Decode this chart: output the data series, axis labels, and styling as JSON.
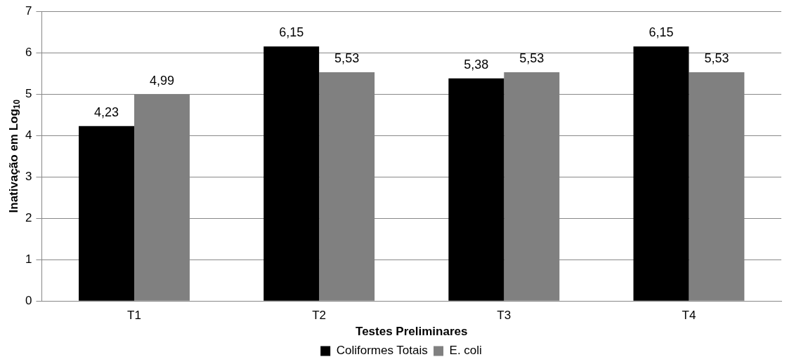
{
  "chart_data": {
    "type": "bar",
    "xlabel": "Testes Preliminares",
    "ylabel": "Inativação em Log$_{10}$",
    "categories": [
      "T1",
      "T2",
      "T3",
      "T4"
    ],
    "series": [
      {
        "name": "Coliformes Totais",
        "color": "#000000",
        "values": [
          4.23,
          6.15,
          5.38,
          6.15
        ],
        "value_labels": [
          "4,23",
          "6,15",
          "5,38",
          "6,15"
        ]
      },
      {
        "name": "E. coli",
        "color": "#808080",
        "values": [
          4.99,
          5.53,
          5.53,
          5.53
        ],
        "value_labels": [
          "4,99",
          "5,53",
          "5,53",
          "5,53"
        ]
      }
    ],
    "ylim": [
      0,
      7
    ],
    "yticks": [
      0,
      1,
      2,
      3,
      4,
      5,
      6,
      7
    ],
    "grid": "y",
    "legend": "bottom"
  }
}
